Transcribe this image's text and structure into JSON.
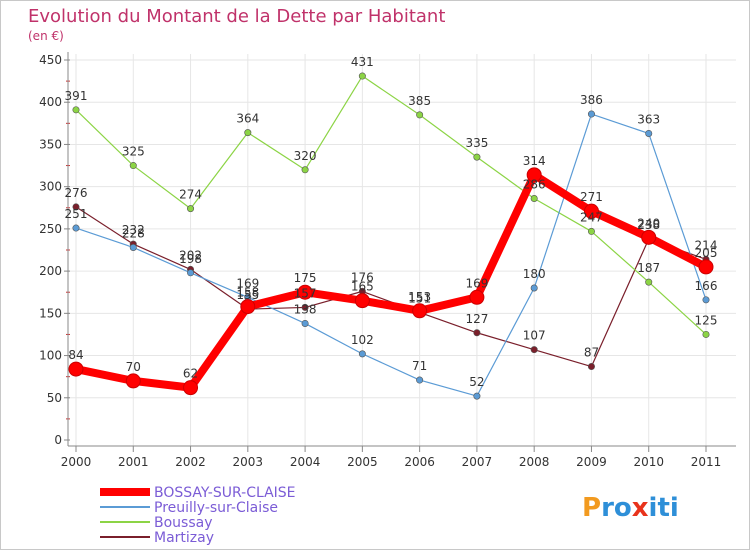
{
  "chart_data": {
    "type": "line",
    "title": "Evolution du Montant de la Dette par Habitant",
    "subtitle": "(en €)",
    "xlabel": "",
    "ylabel": "",
    "ylim": [
      0,
      450
    ],
    "yticks": [
      0,
      50,
      100,
      150,
      200,
      250,
      300,
      350,
      400,
      450
    ],
    "x": [
      "2000",
      "2001",
      "2002",
      "2003",
      "2004",
      "2005",
      "2006",
      "2007",
      "2008",
      "2009",
      "2010",
      "2011"
    ],
    "grid": true,
    "legend_position": "bottom-left",
    "series": [
      {
        "name": "BOSSAY-SUR-CLAISE",
        "color": "#ff0000",
        "values": [
          84,
          70,
          62,
          158,
          175,
          165,
          153,
          169,
          314,
          271,
          240,
          205
        ]
      },
      {
        "name": "Preuilly-sur-Claise",
        "color": "#5b9bd5",
        "values": [
          251,
          228,
          198,
          169,
          138,
          102,
          71,
          52,
          180,
          386,
          363,
          166
        ]
      },
      {
        "name": "Boussay",
        "color": "#8cd445",
        "values": [
          391,
          325,
          274,
          364,
          320,
          431,
          385,
          335,
          286,
          247,
          187,
          125
        ]
      },
      {
        "name": "Martizay",
        "color": "#7a1f2b",
        "values": [
          276,
          232,
          202,
          155,
          157,
          176,
          151,
          127,
          107,
          87,
          238,
          214
        ]
      }
    ]
  },
  "logo": {
    "text": "Proxiti"
  }
}
